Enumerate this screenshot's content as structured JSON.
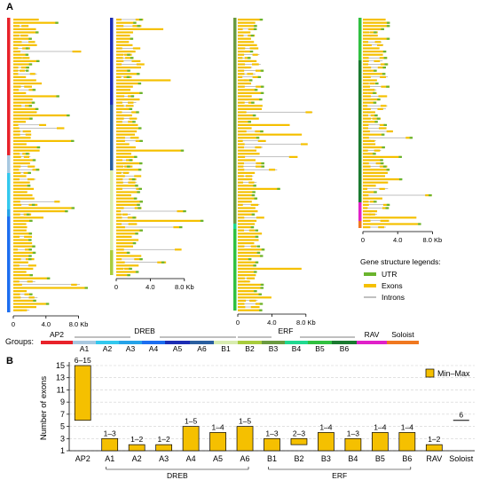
{
  "panel_a": {
    "label": "A",
    "axis_unit": "Kb",
    "scale_ticks": [
      "0",
      "4.0",
      "8.0 Kb"
    ],
    "legend": {
      "title": "Gene structure legends:",
      "items": [
        {
          "label": "UTR",
          "color": "#6ab42d"
        },
        {
          "label": "Exons",
          "color": "#f5c000"
        },
        {
          "label": "Introns",
          "color": "#808080"
        }
      ]
    },
    "groups_label": "Groups:",
    "subfamilies": [
      "AP2",
      "DREB",
      "ERF",
      "RAV",
      "Soloist"
    ],
    "groups": [
      {
        "name": "AP2",
        "color": "#e8222a"
      },
      {
        "name": "A1",
        "color": "#a8c8e0"
      },
      {
        "name": "A2",
        "color": "#33c8ee"
      },
      {
        "name": "A3",
        "color": "#25a2e8"
      },
      {
        "name": "A4",
        "color": "#1d6ef0"
      },
      {
        "name": "A5",
        "color": "#1c2db4"
      },
      {
        "name": "A6",
        "color": "#2a5fa0"
      },
      {
        "name": "B1",
        "color": "#d8ecb0"
      },
      {
        "name": "B2",
        "color": "#a8cc3c"
      },
      {
        "name": "B3",
        "color": "#6a9a40"
      },
      {
        "name": "B4",
        "color": "#20d890"
      },
      {
        "name": "B5",
        "color": "#30c040"
      },
      {
        "name": "B6",
        "color": "#1a7a30"
      },
      {
        "name": "RAV",
        "color": "#e020c8"
      },
      {
        "name": "Soloist",
        "color": "#f07820"
      }
    ]
  },
  "panel_b": {
    "label": "B",
    "legend_label": "Min–Max",
    "colors": {
      "bar": "#f5c000",
      "stroke": "#000000"
    },
    "subfamilies": [
      "DREB",
      "ERF"
    ],
    "chart_data": {
      "type": "bar",
      "ylabel": "Number of exons",
      "ylim": [
        1,
        15
      ],
      "yticks": [
        1,
        3,
        5,
        7,
        9,
        11,
        13,
        15
      ],
      "grid": true,
      "legend_position": "top-right",
      "categories": [
        "AP2",
        "A1",
        "A2",
        "A3",
        "A4",
        "A5",
        "A6",
        "B1",
        "B2",
        "B3",
        "B4",
        "B5",
        "B6",
        "RAV",
        "Soloist"
      ],
      "min": [
        6,
        1,
        1,
        1,
        1,
        1,
        1,
        1,
        2,
        1,
        1,
        1,
        1,
        1,
        6
      ],
      "max": [
        15,
        3,
        2,
        2,
        5,
        4,
        5,
        3,
        3,
        4,
        3,
        4,
        4,
        2,
        6
      ],
      "labels": [
        "6–15",
        "1–3",
        "1–2",
        "1–2",
        "1–5",
        "1–4",
        "1–5",
        "1–3",
        "2–3",
        "1–4",
        "1–3",
        "1–4",
        "1–4",
        "1–2",
        "6"
      ]
    }
  }
}
